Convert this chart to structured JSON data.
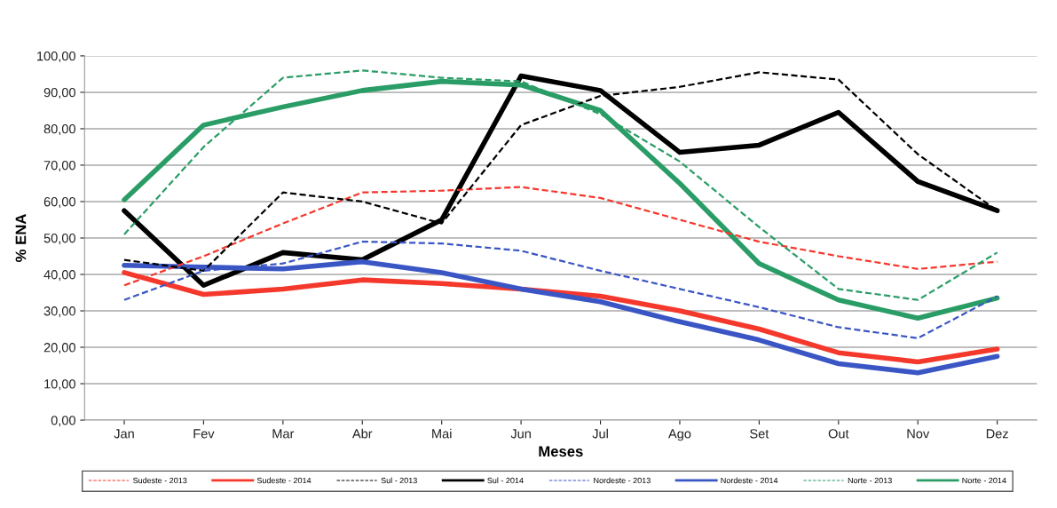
{
  "chart_data": {
    "type": "line",
    "xlabel": "Meses",
    "ylabel": "% ENA",
    "categories": [
      "Jan",
      "Fev",
      "Mar",
      "Abr",
      "Mai",
      "Jun",
      "Jul",
      "Ago",
      "Set",
      "Out",
      "Nov",
      "Dez"
    ],
    "series": [
      {
        "name": "Sudeste - 2013",
        "color": "#f5382c",
        "line_style": "dashed",
        "values": [
          37,
          45,
          54,
          62.5,
          63,
          64,
          61,
          55,
          49,
          45,
          41.5,
          43.5
        ]
      },
      {
        "name": "Sudeste - 2014",
        "color": "#f5382c",
        "line_style": "solid",
        "values": [
          40.5,
          34.5,
          36,
          38.5,
          37.5,
          36,
          34,
          30,
          25,
          18.5,
          16,
          19.5
        ]
      },
      {
        "name": "Sul - 2013",
        "color": "#000000",
        "line_style": "dashed",
        "values": [
          44,
          41,
          62.5,
          60,
          54,
          81,
          89,
          91.5,
          95.5,
          93.5,
          73,
          57.5
        ]
      },
      {
        "name": "Sul - 2014",
        "color": "#000000",
        "line_style": "solid",
        "values": [
          57.5,
          37,
          46,
          44,
          55,
          94.5,
          90.5,
          73.5,
          75.5,
          84.5,
          65.5,
          57.5
        ]
      },
      {
        "name": "Nordeste - 2013",
        "color": "#3a56c4",
        "line_style": "dashed",
        "values": [
          33,
          41,
          43,
          49,
          48.5,
          46.5,
          41,
          36,
          31,
          25.5,
          22.5,
          34
        ]
      },
      {
        "name": "Nordeste - 2014",
        "color": "#3a56c4",
        "line_style": "solid",
        "values": [
          42.5,
          42,
          41.5,
          43.5,
          40.5,
          36,
          32.5,
          27,
          22,
          15.5,
          13,
          17.5
        ]
      },
      {
        "name": "Norte - 2013",
        "color": "#2a9d66",
        "line_style": "dashed",
        "values": [
          51,
          75,
          94,
          96,
          94,
          93,
          84,
          71,
          53,
          36,
          33,
          46
        ]
      },
      {
        "name": "Norte - 2014",
        "color": "#2a9d66",
        "line_style": "solid",
        "values": [
          60.5,
          81,
          86,
          90.5,
          93,
          92,
          85,
          65,
          43,
          33,
          28,
          33.5
        ]
      }
    ],
    "ylim": [
      0,
      100
    ],
    "yticks": [
      {
        "value": 0,
        "label": "0,00"
      },
      {
        "value": 10,
        "label": "10,00"
      },
      {
        "value": 20,
        "label": "20,00"
      },
      {
        "value": 30,
        "label": "30,00"
      },
      {
        "value": 40,
        "label": "40,00"
      },
      {
        "value": 50,
        "label": "50,00"
      },
      {
        "value": 60,
        "label": "60,00"
      },
      {
        "value": 70,
        "label": "70,00"
      },
      {
        "value": 80,
        "label": "80,00"
      },
      {
        "value": 90,
        "label": "90,00"
      },
      {
        "value": 100,
        "label": "100,00"
      }
    ],
    "grid": "y",
    "legend": "bottom",
    "marker": "none"
  }
}
